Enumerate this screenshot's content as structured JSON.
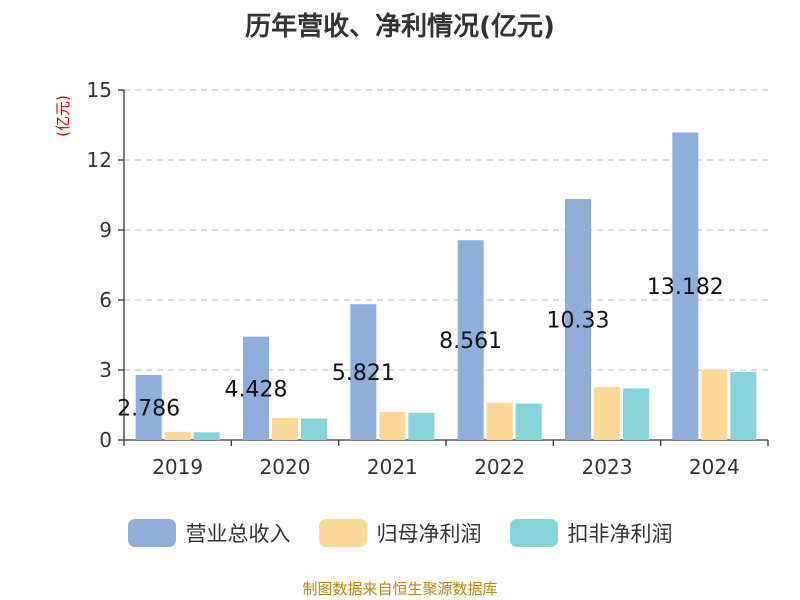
{
  "chart_data": {
    "type": "bar",
    "title": "历年营收、净利情况(亿元)",
    "ylabel": "(亿元)",
    "ylim": [
      0,
      15
    ],
    "yticks": [
      0,
      3,
      6,
      9,
      12,
      15
    ],
    "grid": true,
    "legend_position": "bottom",
    "categories": [
      "2019",
      "2020",
      "2021",
      "2022",
      "2023",
      "2024"
    ],
    "series": [
      {
        "name": "营业总收入",
        "color": "#8eaedc",
        "values": [
          2.786,
          4.428,
          5.821,
          8.561,
          10.33,
          13.182
        ],
        "labels": [
          "2.786",
          "4.428",
          "5.821",
          "8.561",
          "10.33",
          "13.182"
        ]
      },
      {
        "name": "归母净利润",
        "color": "#fdd897",
        "values": [
          0.35,
          0.95,
          1.2,
          1.6,
          2.27,
          3.02
        ]
      },
      {
        "name": "扣非净利润",
        "color": "#86d4d8",
        "values": [
          0.33,
          0.92,
          1.17,
          1.56,
          2.21,
          2.92
        ]
      }
    ]
  },
  "source": "制图数据来自恒生聚源数据库"
}
